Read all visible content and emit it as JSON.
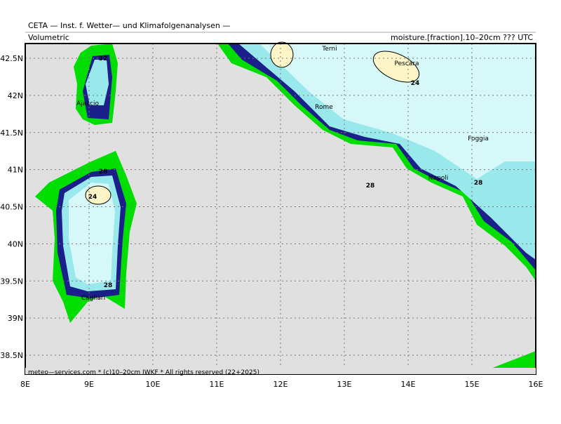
{
  "header": {
    "institute": "CETA — Inst. f. Wetter— und Klimafolgenanalysen —",
    "left_title": "Volumetric",
    "right_title": "moisture.[fraction].10–20cm ??? UTC"
  },
  "footer": "meteo—services.com * (c)10–20cm IWKF * All rights reserved (22+2025)",
  "lat_ticks": [
    {
      "value": 42.5,
      "label": "42.5N"
    },
    {
      "value": 42,
      "label": "42N"
    },
    {
      "value": 41.5,
      "label": "41.5N"
    },
    {
      "value": 41,
      "label": "41N"
    },
    {
      "value": 40.5,
      "label": "40.5N"
    },
    {
      "value": 40,
      "label": "40N"
    },
    {
      "value": 39.5,
      "label": "39.5N"
    },
    {
      "value": 39,
      "label": "39N"
    },
    {
      "value": 38.5,
      "label": "38.5N"
    }
  ],
  "lon_ticks": [
    {
      "value": 8,
      "label": "8E"
    },
    {
      "value": 9,
      "label": "9E"
    },
    {
      "value": 10,
      "label": "10E"
    },
    {
      "value": 11,
      "label": "11E"
    },
    {
      "value": 12,
      "label": "12E"
    },
    {
      "value": 13,
      "label": "13E"
    },
    {
      "value": 14,
      "label": "14E"
    },
    {
      "value": 15,
      "label": "15E"
    },
    {
      "value": 16,
      "label": "16E"
    }
  ],
  "cities": [
    "Terni",
    "Pescara",
    "Rome",
    "Foggia",
    "Napoli",
    "Ajaccio",
    "Cagliari"
  ],
  "contour_labels": [
    "32",
    "24",
    "28",
    "24",
    "28",
    "28",
    "28"
  ]
}
